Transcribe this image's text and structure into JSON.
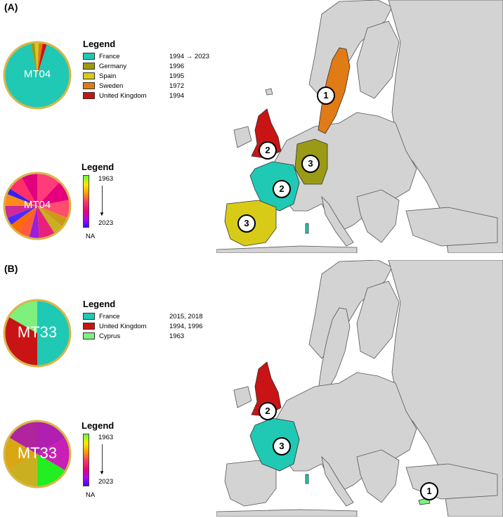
{
  "panels": [
    {
      "label": "(A)",
      "pie_label": "MT04",
      "legend_title": "Legend",
      "legend_items": [
        {
          "country": "France",
          "year": "1994 → 2023",
          "color": "#1fc9b3"
        },
        {
          "country": "Germany",
          "year": "1996",
          "color": "#9a9a16"
        },
        {
          "country": "Spain",
          "year": "1995",
          "color": "#d8cb17"
        },
        {
          "country": "Sweden",
          "year": "1972",
          "color": "#e07b15"
        },
        {
          "country": "United Kingdom",
          "year": "1994",
          "color": "#c81414"
        }
      ],
      "gradient_legend": {
        "title": "Legend",
        "top_year": "1963",
        "bottom_year": "2023",
        "na_label": "NA"
      },
      "country_pie_slices": [
        {
          "country": "France",
          "fraction": 0.92
        },
        {
          "country": "Germany",
          "fraction": 0.02
        },
        {
          "country": "Spain",
          "fraction": 0.02
        },
        {
          "country": "Sweden",
          "fraction": 0.02
        },
        {
          "country": "United Kingdom",
          "fraction": 0.02
        }
      ],
      "year_pie_slices": [
        {
          "color": "#ff3b7a",
          "fraction": 0.12
        },
        {
          "color": "#e6007e",
          "fraction": 0.1
        },
        {
          "color": "#ff4d6d",
          "fraction": 0.09
        },
        {
          "color": "#cc9a1a",
          "fraction": 0.05
        },
        {
          "color": "#c8b020",
          "fraction": 0.05
        },
        {
          "color": "#e8227a",
          "fraction": 0.08
        },
        {
          "color": "#9b1fd6",
          "fraction": 0.05
        },
        {
          "color": "#ff5a3a",
          "fraction": 0.06
        },
        {
          "color": "#ff6a00",
          "fraction": 0.05
        },
        {
          "color": "#4c2bff",
          "fraction": 0.04
        },
        {
          "color": "#cc2a9a",
          "fraction": 0.06
        },
        {
          "color": "#ff8a1a",
          "fraction": 0.06
        },
        {
          "color": "#3322ee",
          "fraction": 0.03
        },
        {
          "color": "#ff2f6a",
          "fraction": 0.08
        },
        {
          "color": "#e0007e",
          "fraction": 0.08
        }
      ],
      "highlighted_countries": [
        {
          "name": "Sweden",
          "rank": "1",
          "color": "#e07b15"
        },
        {
          "name": "United Kingdom",
          "rank": "2",
          "color": "#c81414"
        },
        {
          "name": "France",
          "rank": "2",
          "color": "#1fc9b3"
        },
        {
          "name": "Germany",
          "rank": "3",
          "color": "#9a9a16"
        },
        {
          "name": "Spain",
          "rank": "3",
          "color": "#d8cb17"
        }
      ]
    },
    {
      "label": "(B)",
      "pie_label": "MT33",
      "legend_title": "Legend",
      "legend_items": [
        {
          "country": "France",
          "year": "2015, 2018",
          "color": "#1fc9b3"
        },
        {
          "country": "United Kingdom",
          "year": "1994, 1996",
          "color": "#c81414"
        },
        {
          "country": "Cyprus",
          "year": "1963",
          "color": "#7ef07e"
        }
      ],
      "gradient_legend": {
        "title": "Legend",
        "top_year": "1963",
        "bottom_year": "2023",
        "na_label": "NA"
      },
      "country_pie_slices": [
        {
          "country": "France",
          "fraction": 0.5
        },
        {
          "country": "United Kingdom",
          "fraction": 0.333
        },
        {
          "country": "Cyprus",
          "fraction": 0.167
        }
      ],
      "year_pie_slices": [
        {
          "color": "#b01fb0",
          "fraction": 0.167
        },
        {
          "color": "#c81fb5",
          "fraction": 0.167
        },
        {
          "color": "#22ee22",
          "fraction": 0.167
        },
        {
          "color": "#c8b020",
          "fraction": 0.167
        },
        {
          "color": "#d9a614",
          "fraction": 0.167
        },
        {
          "color": "#b0249e",
          "fraction": 0.165
        }
      ],
      "highlighted_countries": [
        {
          "name": "Cyprus",
          "rank": "1",
          "color": "#7ef07e"
        },
        {
          "name": "United Kingdom",
          "rank": "2",
          "color": "#c81414"
        },
        {
          "name": "France",
          "rank": "3",
          "color": "#1fc9b3"
        }
      ]
    }
  ],
  "map_colors": {
    "land": "#d3d3d3",
    "border": "#555555",
    "sea": "#ffffff",
    "pie_ring": "#d9b64a"
  }
}
